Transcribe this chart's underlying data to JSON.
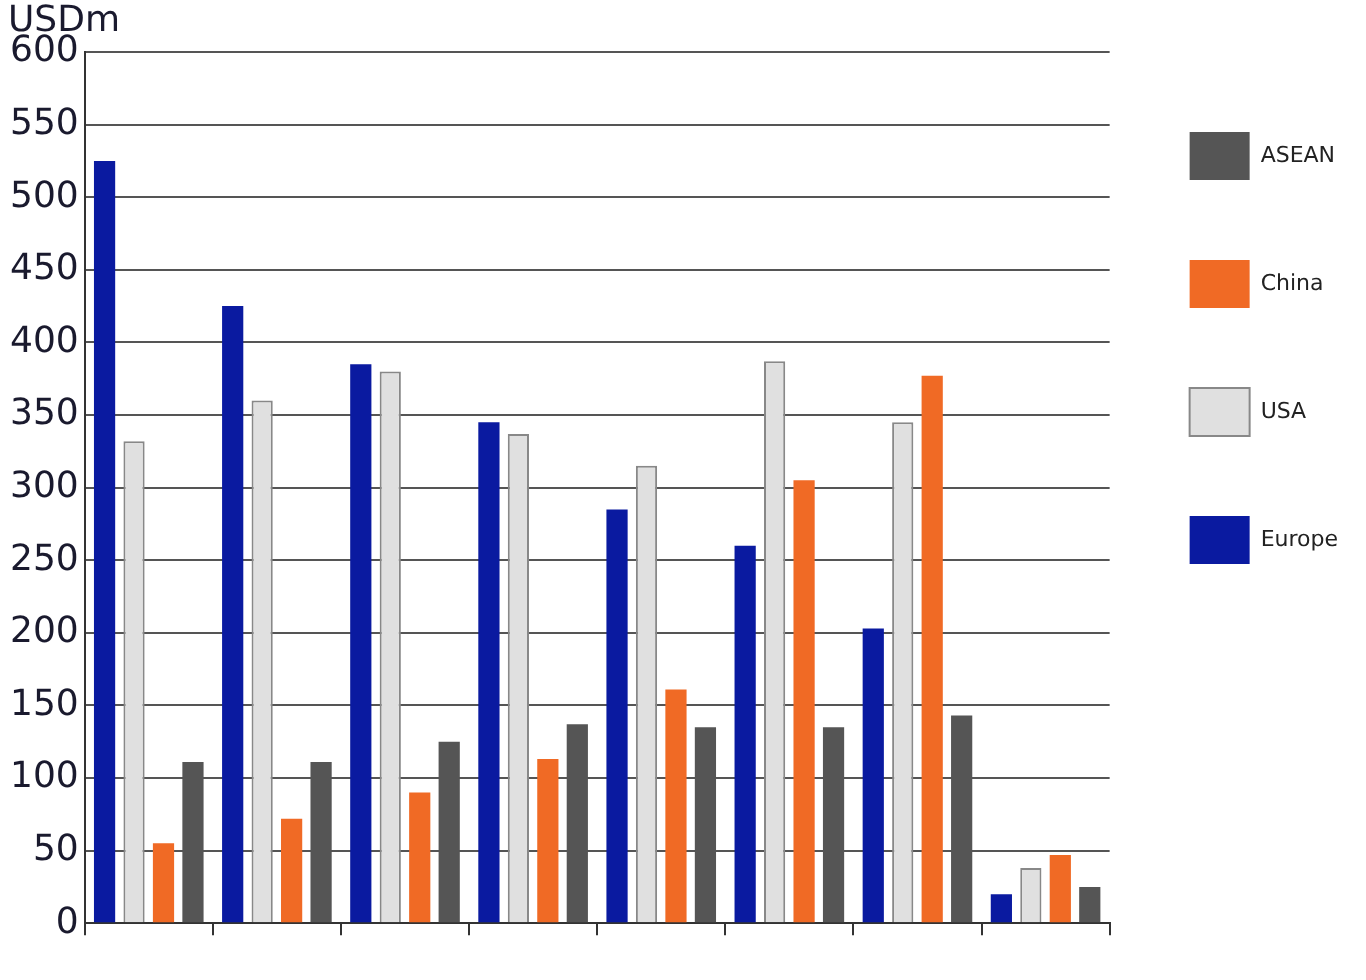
{
  "chart_data": {
    "type": "bar",
    "ylabel": "USDm",
    "categories": [
      null,
      null,
      null,
      null,
      null,
      null,
      null,
      null
    ],
    "series": [
      {
        "name": "Europe",
        "color": "#0a1aa0",
        "values": [
          525,
          425,
          385,
          345,
          285,
          260,
          203,
          20
        ]
      },
      {
        "name": "USA",
        "color": "#e0e0e0",
        "values": [
          332,
          360,
          380,
          337,
          315,
          387,
          345,
          38
        ]
      },
      {
        "name": "China",
        "color": "#f06a25",
        "values": [
          55,
          72,
          90,
          113,
          161,
          305,
          377,
          47
        ]
      },
      {
        "name": "ASEAN",
        "color": "#555555",
        "values": [
          111,
          111,
          125,
          137,
          135,
          135,
          143,
          25
        ]
      }
    ],
    "ylim": [
      0,
      600
    ],
    "yticks": [
      0,
      50,
      100,
      150,
      200,
      250,
      300,
      350,
      400,
      450,
      500,
      550,
      600
    ],
    "grid": "y",
    "legend": "right"
  }
}
